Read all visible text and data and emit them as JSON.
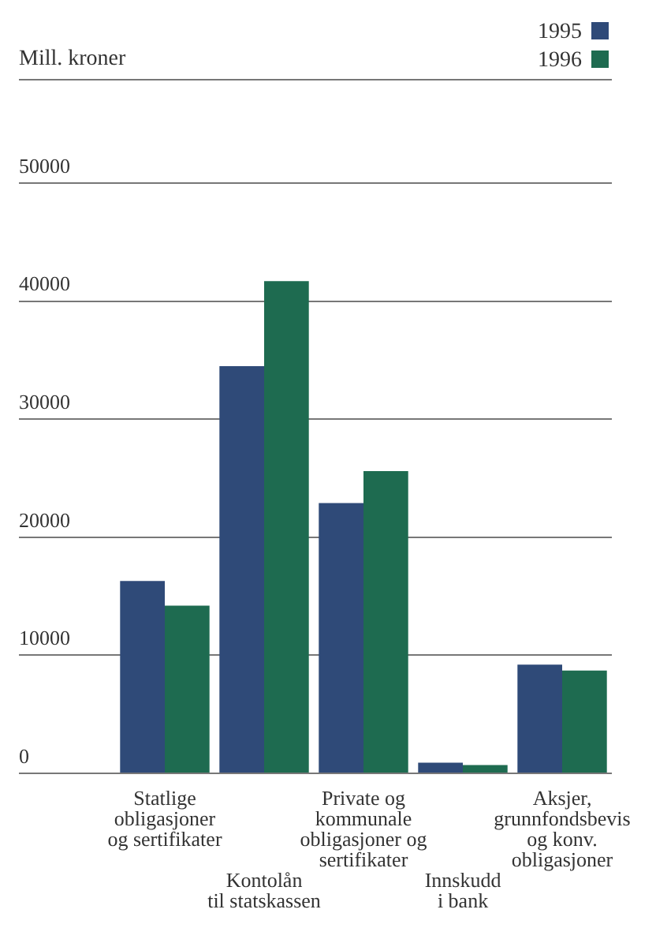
{
  "chart_data": {
    "type": "bar",
    "ylabel": "Mill. kroner",
    "categories": [
      "Statlige\nobligasjoner\nog sertifikater",
      "Kontolån\ntil statskassen",
      "Private og\nkommunale\nobligasjoner og\nsertifikater",
      "Innskudd\ni bank",
      "Aksjer,\ngrunnfondsbevis\nog konv.\nobligasjoner"
    ],
    "series": [
      {
        "name": "1995",
        "color": "#2f4a78",
        "values": [
          16300,
          34500,
          22900,
          900,
          9200
        ]
      },
      {
        "name": "1996",
        "color": "#1e6b50",
        "values": [
          14200,
          41700,
          25600,
          700,
          8700
        ]
      }
    ],
    "ylim": [
      0,
      50000
    ],
    "yticks": [
      0,
      10000,
      20000,
      30000,
      40000,
      50000
    ],
    "grid": "y",
    "legend": "top right"
  }
}
